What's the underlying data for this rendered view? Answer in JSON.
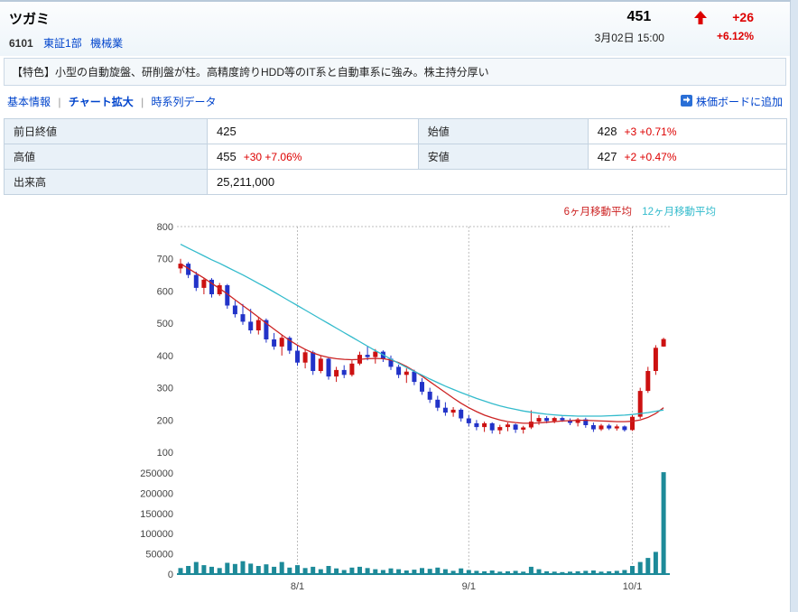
{
  "header": {
    "company_name": "ツガミ",
    "code": "6101",
    "market": "東証1部",
    "industry": "機械業",
    "price": "451",
    "change": "+26",
    "change_pct": "+6.12%",
    "datetime": "3月02日 15:00",
    "up_color": "#dd0000"
  },
  "feature": {
    "text": "【特色】小型の自動旋盤、研削盤が柱。高精度誇りHDD等のIT系と自動車系に強み。株主持分厚い"
  },
  "nav": {
    "separator": "|",
    "items": [
      {
        "label": "基本情報"
      },
      {
        "label": "チャート拡大"
      },
      {
        "label": "時系列データ"
      }
    ],
    "add_to_board": "株価ボードに追加"
  },
  "quote_table": {
    "prev_close_label": "前日終値",
    "prev_close": "425",
    "open_label": "始値",
    "open": "428",
    "open_extra": "+3 +0.71%",
    "high_label": "高値",
    "high": "455",
    "high_extra": "+30 +7.06%",
    "low_label": "安値",
    "low": "427",
    "low_extra": "+2 +0.47%",
    "volume_label": "出来高",
    "volume": "25,211,000"
  },
  "chart_data": {
    "type": "candlestick",
    "legend": [
      {
        "label": "6ヶ月移動平均",
        "color": "#cc2222"
      },
      {
        "label": "12ヶ月移動平均",
        "color": "#33bbcc"
      }
    ],
    "colors": {
      "up": "#cc1111",
      "down": "#2233c8",
      "volume": "#1d8a99"
    },
    "price_axis": {
      "min": 100,
      "max": 800,
      "ticks": [
        800,
        700,
        600,
        500,
        400,
        300,
        200,
        100
      ]
    },
    "volume_axis": {
      "max": 250000,
      "ticks": [
        250000,
        200000,
        150000,
        100000,
        50000,
        0
      ]
    },
    "x_ticks": [
      {
        "index": 15,
        "label": "8/1"
      },
      {
        "index": 37,
        "label": "9/1"
      },
      {
        "index": 58,
        "label": "10/1"
      }
    ],
    "candles": [
      [
        670,
        700,
        655,
        685,
        15000
      ],
      [
        685,
        690,
        640,
        650,
        20000
      ],
      [
        650,
        660,
        600,
        610,
        30000
      ],
      [
        610,
        640,
        590,
        635,
        22000
      ],
      [
        635,
        640,
        580,
        590,
        18000
      ],
      [
        590,
        625,
        585,
        618,
        15000
      ],
      [
        618,
        622,
        545,
        555,
        28000
      ],
      [
        555,
        570,
        518,
        528,
        25000
      ],
      [
        528,
        560,
        495,
        505,
        32000
      ],
      [
        505,
        545,
        468,
        478,
        26000
      ],
      [
        478,
        520,
        465,
        510,
        20000
      ],
      [
        510,
        515,
        440,
        450,
        24000
      ],
      [
        450,
        470,
        418,
        428,
        18000
      ],
      [
        428,
        465,
        400,
        455,
        30000
      ],
      [
        455,
        460,
        405,
        415,
        16000
      ],
      [
        415,
        432,
        368,
        378,
        22000
      ],
      [
        378,
        420,
        360,
        410,
        15000
      ],
      [
        410,
        415,
        340,
        352,
        18000
      ],
      [
        352,
        400,
        345,
        390,
        12000
      ],
      [
        390,
        395,
        325,
        335,
        20000
      ],
      [
        335,
        365,
        318,
        355,
        14000
      ],
      [
        355,
        370,
        330,
        340,
        10000
      ],
      [
        340,
        385,
        335,
        375,
        16000
      ],
      [
        375,
        412,
        370,
        402,
        18000
      ],
      [
        402,
        430,
        385,
        395,
        15000
      ],
      [
        395,
        420,
        375,
        412,
        12000
      ],
      [
        412,
        416,
        380,
        390,
        10000
      ],
      [
        390,
        400,
        355,
        365,
        14000
      ],
      [
        365,
        372,
        330,
        340,
        12000
      ],
      [
        340,
        360,
        315,
        350,
        9000
      ],
      [
        350,
        356,
        308,
        318,
        11000
      ],
      [
        318,
        330,
        278,
        288,
        15000
      ],
      [
        288,
        300,
        253,
        263,
        13000
      ],
      [
        263,
        275,
        228,
        238,
        16000
      ],
      [
        238,
        255,
        213,
        223,
        12000
      ],
      [
        223,
        240,
        210,
        232,
        8000
      ],
      [
        232,
        236,
        195,
        205,
        14000
      ],
      [
        205,
        215,
        180,
        190,
        10000
      ],
      [
        190,
        200,
        168,
        178,
        8000
      ],
      [
        178,
        195,
        163,
        190,
        7000
      ],
      [
        190,
        193,
        158,
        168,
        9000
      ],
      [
        168,
        185,
        156,
        178,
        6000
      ],
      [
        178,
        192,
        165,
        186,
        7000
      ],
      [
        186,
        189,
        160,
        170,
        8000
      ],
      [
        170,
        182,
        158,
        177,
        6000
      ],
      [
        177,
        230,
        172,
        195,
        18000
      ],
      [
        195,
        215,
        185,
        206,
        12000
      ],
      [
        206,
        212,
        190,
        197,
        7000
      ],
      [
        197,
        210,
        190,
        206,
        6000
      ],
      [
        206,
        211,
        194,
        199,
        5000
      ],
      [
        199,
        205,
        184,
        191,
        6000
      ],
      [
        191,
        206,
        180,
        202,
        7000
      ],
      [
        202,
        207,
        176,
        184,
        8000
      ],
      [
        184,
        192,
        163,
        171,
        9000
      ],
      [
        171,
        188,
        166,
        183,
        6000
      ],
      [
        183,
        188,
        169,
        174,
        7000
      ],
      [
        174,
        186,
        167,
        180,
        8000
      ],
      [
        180,
        183,
        164,
        169,
        10000
      ],
      [
        169,
        216,
        166,
        210,
        20000
      ],
      [
        210,
        300,
        204,
        290,
        30000
      ],
      [
        290,
        365,
        284,
        352,
        40000
      ],
      [
        352,
        432,
        340,
        424,
        55000
      ],
      [
        428,
        455,
        427,
        451,
        252110
      ]
    ],
    "ma6": [
      685,
      670,
      655,
      640,
      624,
      608,
      591,
      573,
      555,
      537,
      519,
      500,
      482,
      464,
      447,
      432,
      419,
      408,
      400,
      394,
      390,
      388,
      387,
      388,
      390,
      391,
      390,
      386,
      378,
      366,
      352,
      336,
      319,
      302,
      285,
      268,
      252,
      238,
      226,
      215,
      207,
      200,
      195,
      192,
      190,
      190,
      191,
      193,
      195,
      197,
      198,
      199,
      199,
      198,
      197,
      196,
      195,
      195,
      196,
      200,
      208,
      220,
      238
    ],
    "ma12": [
      745,
      733,
      721,
      709,
      697,
      686,
      674,
      662,
      650,
      637,
      624,
      611,
      597,
      583,
      569,
      555,
      541,
      527,
      513,
      499,
      485,
      471,
      457,
      443,
      429,
      415,
      402,
      389,
      376,
      363,
      351,
      339,
      327,
      316,
      305,
      295,
      285,
      276,
      267,
      259,
      251,
      244,
      238,
      233,
      228,
      224,
      221,
      218,
      216,
      214,
      213,
      212,
      212,
      212,
      212,
      213,
      214,
      215,
      217,
      220,
      223,
      227,
      231
    ]
  }
}
